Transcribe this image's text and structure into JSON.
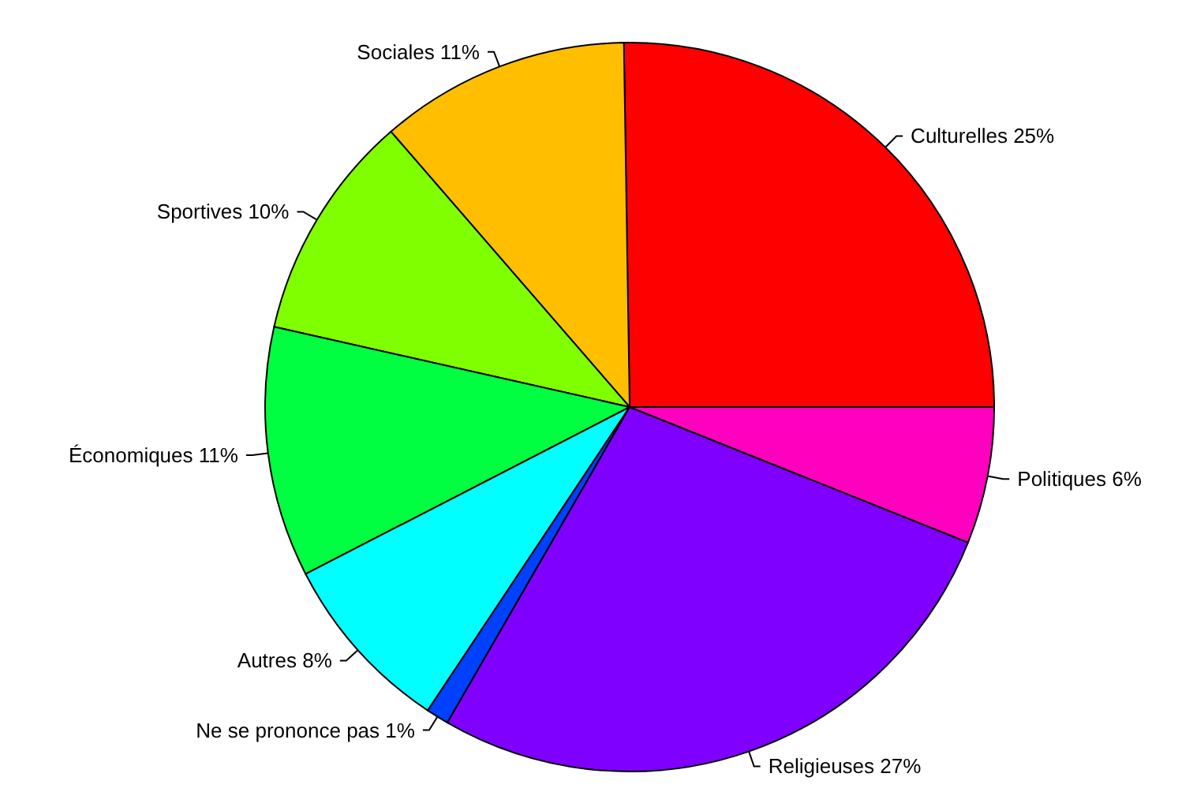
{
  "chart_data": {
    "type": "pie",
    "categories": [
      "Culturelles",
      "Sociales",
      "Sportives",
      "Économiques",
      "Autres",
      "Ne se prononce pas",
      "Religieuses",
      "Politiques"
    ],
    "values": [
      25,
      11,
      10,
      11,
      8,
      1,
      27,
      6
    ],
    "value_labels": [
      "25%",
      "11%",
      "10%",
      "11%",
      "8%",
      "1%",
      "27%",
      "6%"
    ],
    "colors": [
      "#ff0000",
      "#ffbf00",
      "#80ff00",
      "#00ff40",
      "#00ffff",
      "#0040ff",
      "#8000ff",
      "#ff00bf"
    ],
    "legend": false
  }
}
